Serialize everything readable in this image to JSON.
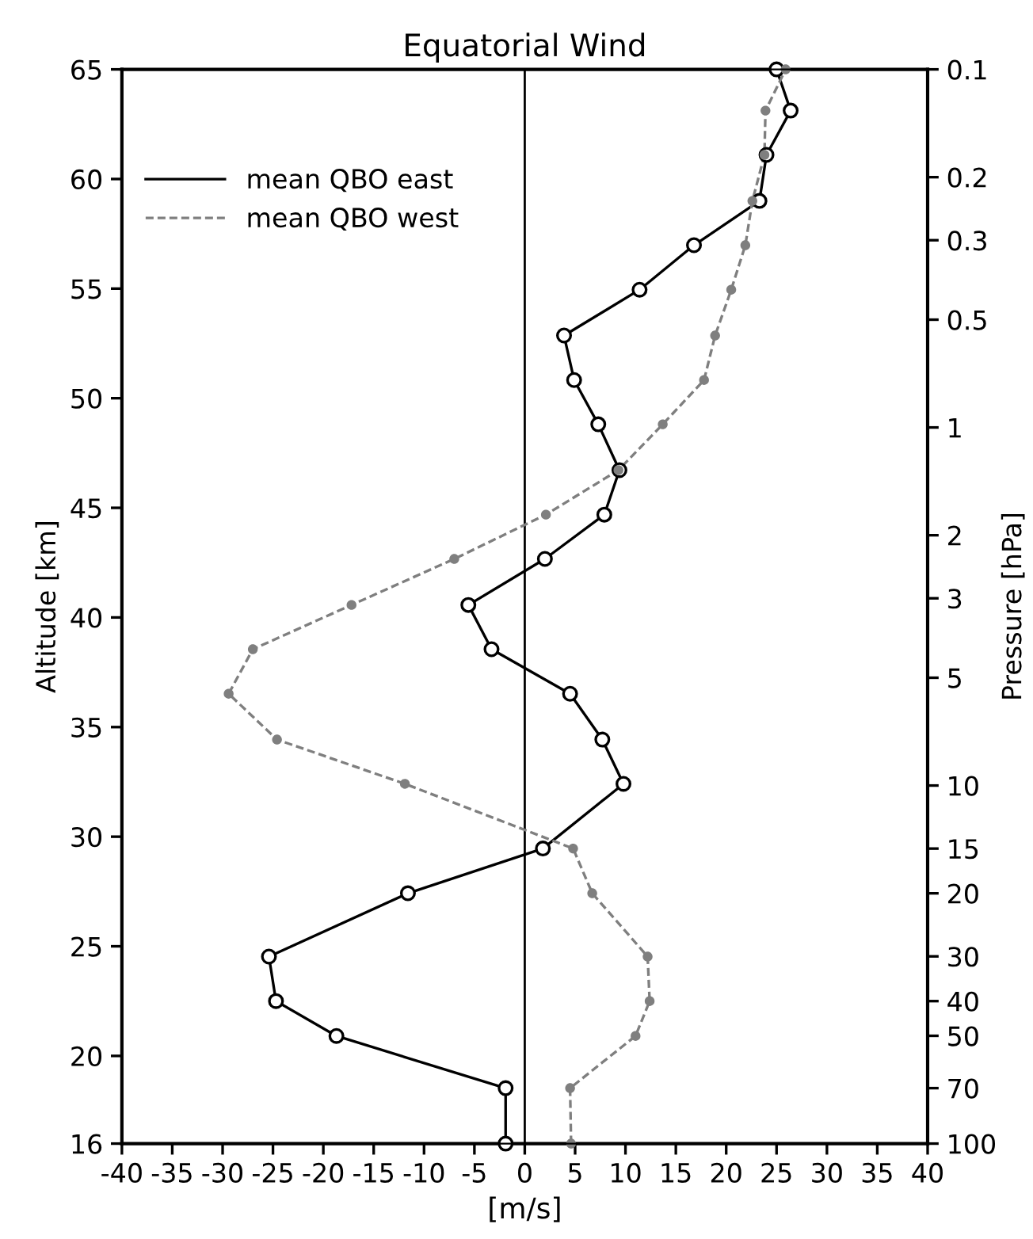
{
  "chart_data": {
    "type": "line",
    "title": "Equatorial Wind",
    "xlabel": "[m/s]",
    "ylabel": "Altitude [km]",
    "y2label": "Pressure [hPa]",
    "series": [
      {
        "name": "mean QBO east",
        "color": "#000000",
        "line_style": "solid",
        "marker": "circle",
        "x": [
          -1.9,
          -1.9,
          -18.7,
          -24.7,
          -25.4,
          -11.6,
          1.8,
          9.8,
          7.7,
          4.5,
          -3.3,
          -5.6,
          2.0,
          7.9,
          9.4,
          7.3,
          4.9,
          3.9,
          11.4,
          16.8,
          23.3,
          24.0,
          26.4,
          25.0
        ],
        "values": [
          16.0,
          18.53,
          20.91,
          22.5,
          24.53,
          27.42,
          29.46,
          32.41,
          34.43,
          36.52,
          38.55,
          40.57,
          42.67,
          44.69,
          46.72,
          48.81,
          50.83,
          52.86,
          54.95,
          56.98,
          59.0,
          61.1,
          63.12,
          65.0
        ]
      },
      {
        "name": "mean QBO west",
        "color": "#7f7f7f",
        "line_style": "dashed",
        "marker": "circle",
        "x": [
          4.6,
          4.5,
          11.0,
          12.4,
          12.2,
          6.7,
          4.8,
          -11.9,
          -24.6,
          -29.4,
          -27.0,
          -17.2,
          -7.0,
          2.1,
          9.3,
          13.7,
          17.8,
          18.9,
          20.5,
          21.9,
          22.6,
          23.8,
          23.9,
          25.9
        ],
        "values": [
          16.0,
          18.53,
          20.91,
          22.5,
          24.53,
          27.42,
          29.46,
          32.41,
          34.43,
          36.52,
          38.55,
          40.57,
          42.67,
          44.69,
          46.72,
          48.81,
          50.83,
          52.86,
          54.95,
          56.98,
          59.0,
          61.1,
          63.12,
          65.0
        ]
      }
    ],
    "xlim": [
      -40,
      40
    ],
    "xticks": [
      -40,
      -35,
      -30,
      -25,
      -20,
      -15,
      -10,
      -5,
      0,
      5,
      10,
      15,
      20,
      25,
      30,
      35,
      40
    ],
    "ylim": [
      16,
      65
    ],
    "yticks": [
      16,
      20,
      25,
      30,
      35,
      40,
      45,
      50,
      55,
      60,
      65
    ],
    "y2lim": [
      100,
      0.1
    ],
    "y2ticks": [
      0.1,
      0.2,
      0.3,
      0.5,
      1,
      2,
      3,
      5,
      10,
      15,
      20,
      30,
      40,
      50,
      70,
      100
    ],
    "log": "y2",
    "ref_lines": [
      {
        "axis": "x",
        "value": 0,
        "color": "#000000"
      }
    ],
    "legend": "top left"
  }
}
